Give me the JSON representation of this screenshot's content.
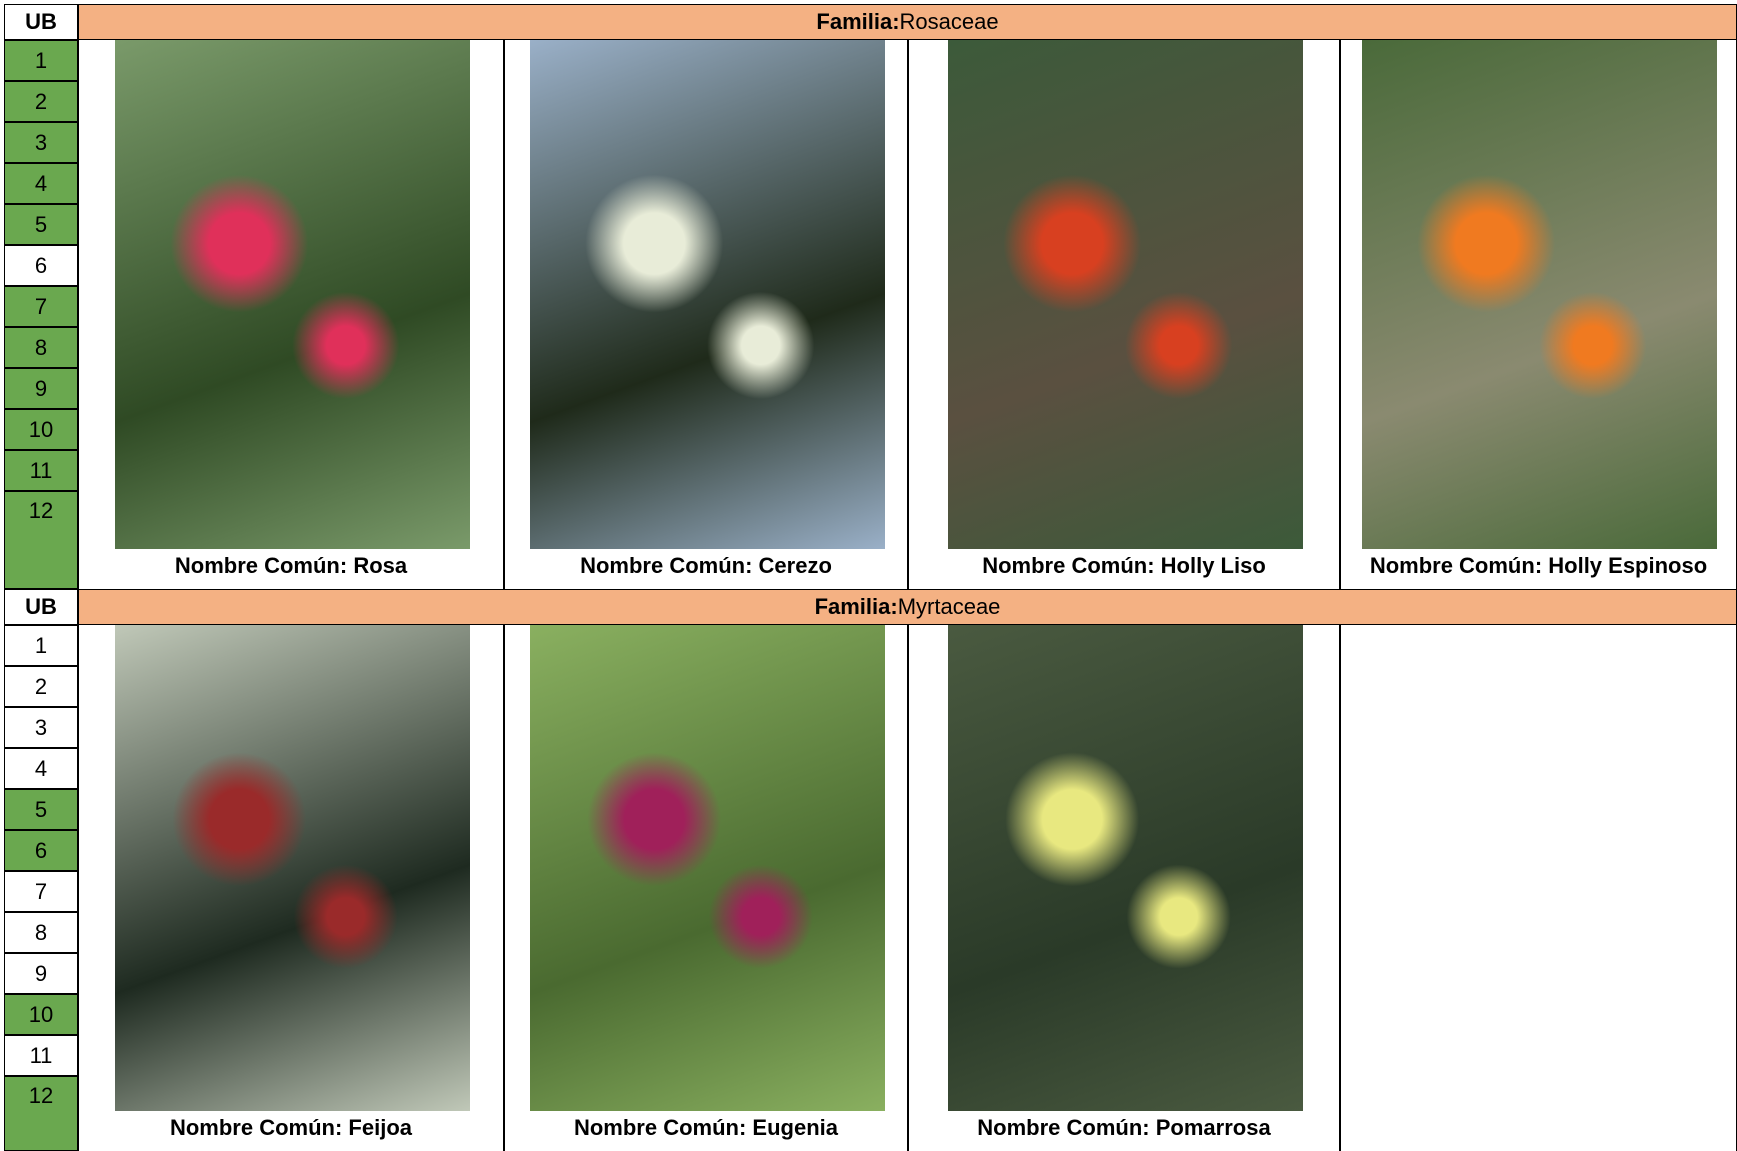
{
  "sections": [
    {
      "ub_header": "UB",
      "family_label": "Familia:",
      "family": "Rosaceae",
      "ub_rows": [
        {
          "label": "1",
          "highlighted": true
        },
        {
          "label": "2",
          "highlighted": true
        },
        {
          "label": "3",
          "highlighted": true
        },
        {
          "label": "4",
          "highlighted": true
        },
        {
          "label": "5",
          "highlighted": true
        },
        {
          "label": "6",
          "highlighted": false
        },
        {
          "label": "7",
          "highlighted": true
        },
        {
          "label": "8",
          "highlighted": true
        },
        {
          "label": "9",
          "highlighted": true
        },
        {
          "label": "10",
          "highlighted": true
        },
        {
          "label": "11",
          "highlighted": true
        },
        {
          "label": "12",
          "highlighted": true
        }
      ],
      "plants": [
        {
          "common_name": "Nombre Común: Rosa"
        },
        {
          "common_name": "Nombre Común: Cerezo"
        },
        {
          "common_name": "Nombre Común: Holly Liso"
        },
        {
          "common_name": "Nombre Común: Holly Espinoso"
        }
      ]
    },
    {
      "ub_header": "UB",
      "family_label": "Familia:",
      "family": "Myrtaceae",
      "ub_rows": [
        {
          "label": "1",
          "highlighted": false
        },
        {
          "label": "2",
          "highlighted": false
        },
        {
          "label": "3",
          "highlighted": false
        },
        {
          "label": "4",
          "highlighted": false
        },
        {
          "label": "5",
          "highlighted": true
        },
        {
          "label": "6",
          "highlighted": true
        },
        {
          "label": "7",
          "highlighted": false
        },
        {
          "label": "8",
          "highlighted": false
        },
        {
          "label": "9",
          "highlighted": false
        },
        {
          "label": "10",
          "highlighted": true
        },
        {
          "label": "11",
          "highlighted": false
        },
        {
          "label": "12",
          "highlighted": true
        }
      ],
      "plants": [
        {
          "common_name": "Nombre Común: Feijoa"
        },
        {
          "common_name": "Nombre Común: Eugenia"
        },
        {
          "common_name": "Nombre Común: Pomarrosa"
        }
      ]
    }
  ]
}
